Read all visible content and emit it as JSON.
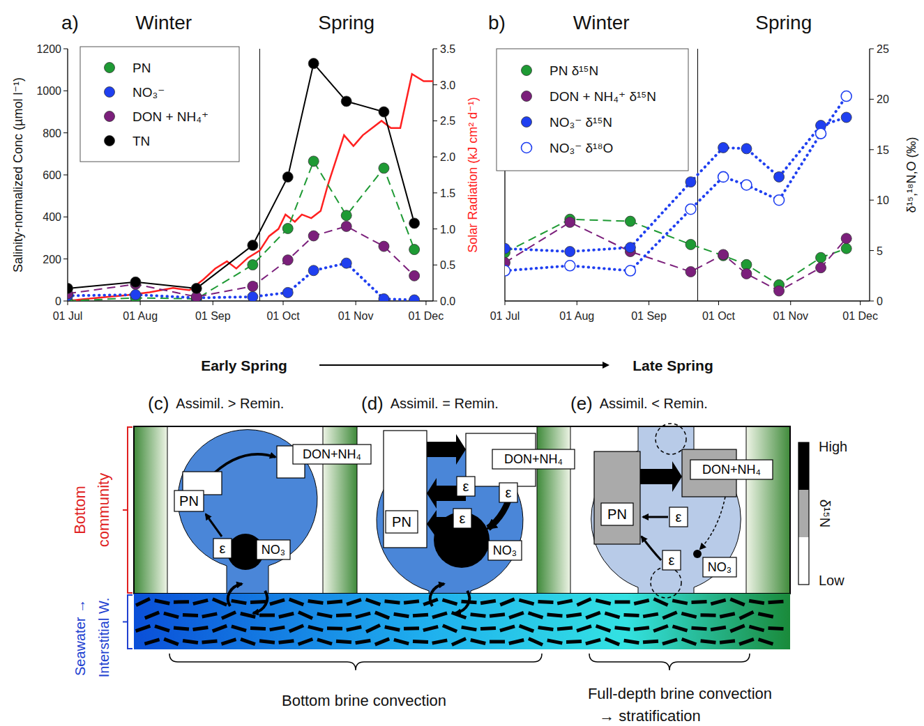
{
  "chart_data": [
    {
      "type": "line",
      "panel": "a)",
      "annotations": [
        "Winter",
        "Spring"
      ],
      "season_divider": 82,
      "y_label": "Salinity-normalized Conc (µmol l⁻¹)",
      "y2_label": "Solar Radiation (kJ cm² d⁻¹)",
      "xlim": [
        0,
        156
      ],
      "xticks": [
        {
          "value": 0,
          "label": "01 Jul"
        },
        {
          "value": 31,
          "label": "01 Aug"
        },
        {
          "value": 62,
          "label": "01 Sep"
        },
        {
          "value": 92,
          "label": "01 Oct"
        },
        {
          "value": 123,
          "label": "01 Nov"
        },
        {
          "value": 153,
          "label": "01 Dec"
        }
      ],
      "ylim": [
        0,
        1200
      ],
      "yticks": [
        0,
        200,
        400,
        600,
        800,
        1000,
        1200
      ],
      "y2lim": [
        0,
        3.5
      ],
      "y2ticks": [
        {
          "value": 0,
          "label": "0.0"
        },
        0.5,
        {
          "value": 1,
          "label": "1.0"
        },
        1.5,
        {
          "value": 2,
          "label": "2.0"
        },
        2.5,
        {
          "value": 3,
          "label": "3.0"
        },
        3.5
      ],
      "grid": false,
      "legend": "top-left",
      "series": [
        {
          "name": "PN",
          "color": "#1e9a34",
          "marker": "circle",
          "line_style": "dashed",
          "x": [
            0,
            29,
            55,
            79,
            94,
            105,
            119,
            135,
            148
          ],
          "values": [
            0,
            15,
            10,
            172,
            345,
            665,
            407,
            632,
            245
          ]
        },
        {
          "name": "NO₃⁻",
          "color": "#1f3ff0",
          "marker": "circle",
          "line_style": "dotted",
          "x": [
            0,
            29,
            55,
            79,
            94,
            105,
            119,
            135,
            148
          ],
          "values": [
            25,
            30,
            15,
            20,
            40,
            145,
            180,
            10,
            5
          ]
        },
        {
          "name": "DON + NH₄⁺",
          "color": "#7b1f7b",
          "marker": "circle",
          "line_style": "dashed",
          "x": [
            0,
            29,
            55,
            79,
            94,
            105,
            119,
            135,
            148
          ],
          "values": [
            35,
            80,
            20,
            70,
            195,
            310,
            355,
            260,
            120
          ]
        },
        {
          "name": "TN",
          "color": "#000000",
          "marker": "circle",
          "line_style": "solid",
          "x": [
            0,
            29,
            55,
            79,
            94,
            105,
            119,
            135,
            148
          ],
          "values": [
            60,
            90,
            60,
            265,
            590,
            1130,
            950,
            900,
            370
          ]
        },
        {
          "color": "#ff2020",
          "line_style": "solid",
          "axis": "y2",
          "x": [
            0,
            5,
            15,
            25,
            35,
            45,
            52,
            58,
            63,
            68,
            72,
            77,
            82,
            86,
            90,
            93,
            97,
            100,
            104,
            108,
            111,
            115,
            118,
            122,
            126,
            130,
            134,
            138,
            142,
            147,
            152,
            156
          ],
          "values": [
            0,
            0.02,
            0.05,
            0.08,
            0.12,
            0.18,
            0.15,
            0.3,
            0.45,
            0.55,
            0.45,
            0.6,
            0.7,
            0.9,
            1.0,
            1.2,
            1.1,
            1.2,
            1.15,
            1.25,
            1.6,
            2.0,
            2.3,
            2.15,
            2.3,
            2.4,
            2.5,
            2.4,
            2.4,
            3.15,
            3.05,
            3.05
          ]
        }
      ]
    },
    {
      "type": "line",
      "panel": "b)",
      "annotations": [
        "Winter",
        "Spring"
      ],
      "season_divider": 83,
      "y2_label": "δ¹⁵,¹⁸N,O (‰)",
      "xlim": [
        0,
        157
      ],
      "xticks": [
        {
          "value": 0,
          "label": "01 Jul"
        },
        {
          "value": 31,
          "label": "01 Aug"
        },
        {
          "value": 62,
          "label": "01 Sep"
        },
        {
          "value": 92,
          "label": "01 Oct"
        },
        {
          "value": 123,
          "label": "01 Nov"
        },
        {
          "value": 153,
          "label": "01 Dec"
        }
      ],
      "y2lim": [
        0,
        25
      ],
      "y2ticks": [
        0,
        5,
        10,
        15,
        20,
        25
      ],
      "grid": false,
      "legend": "top-left",
      "series": [
        {
          "name": "PN δ¹⁵N",
          "color": "#1e9a34",
          "marker": "circle",
          "line_style": "dashed",
          "axis": "y2",
          "x": [
            0,
            28,
            54,
            80,
            94,
            104,
            118,
            136,
            147
          ],
          "values": [
            4.8,
            8.1,
            7.9,
            5.6,
            4.5,
            3.6,
            1.6,
            4.3,
            5.2
          ]
        },
        {
          "name": "DON + NH₄⁺ δ¹⁵N",
          "color": "#7b1f7b",
          "marker": "circle",
          "line_style": "dashed",
          "axis": "y2",
          "x": [
            0,
            28,
            54,
            80,
            94,
            104,
            118,
            136,
            147
          ],
          "values": [
            3.8,
            7.8,
            4.9,
            2.9,
            4.6,
            2.7,
            1.0,
            3.3,
            6.2
          ]
        },
        {
          "name": "NO₃⁻ δ¹⁵N",
          "color": "#1f3ff0",
          "marker": "circle",
          "line_style": "dotted",
          "axis": "y2",
          "x": [
            0,
            28,
            54,
            80,
            94,
            104,
            118,
            136,
            147
          ],
          "values": [
            5.2,
            4.9,
            5.3,
            11.8,
            15.2,
            15.1,
            12.3,
            17.4,
            18.2
          ]
        },
        {
          "name": "NO₃⁻ δ¹⁸O",
          "color": "#1f3ff0",
          "marker": "open-circle",
          "line_style": "dotted",
          "axis": "y2",
          "x": [
            0,
            28,
            54,
            80,
            94,
            104,
            118,
            136,
            147
          ],
          "values": [
            3.0,
            3.5,
            3.0,
            9.1,
            12.3,
            11.5,
            10.0,
            16.6,
            20.3
          ]
        }
      ]
    }
  ],
  "diagram": {
    "timeline": {
      "start": "Early Spring",
      "end": "Late Spring"
    },
    "panels": [
      {
        "letter": "(c)",
        "title": "Assimil. > Remin.",
        "pn": "PN",
        "don": "DON+NH₄",
        "no3": "NO₃",
        "epsilons": [
          "ε"
        ]
      },
      {
        "letter": "(d)",
        "title": "Assimil. = Remin.",
        "pn": "PN",
        "don": "DON+NH₄",
        "no3": "NO₃",
        "epsilons": [
          "ε",
          "ε",
          "ε"
        ]
      },
      {
        "letter": "(e)",
        "title": "Assimil. < Remin.",
        "pn": "PN",
        "don": "DON+NH₄",
        "no3": "NO₃",
        "epsilons": [
          "ε",
          "ε"
        ]
      }
    ],
    "side_labels": [
      {
        "lines": [
          "Bottom",
          "community"
        ],
        "color": "#e02020"
      },
      {
        "lines": [
          "Seawater →",
          "Interstitial W."
        ],
        "color": "#2040d0"
      }
    ],
    "scale": {
      "high": "High",
      "title": "δ¹⁵N",
      "low": "Low"
    },
    "brackets": [
      {
        "lines": [
          "Bottom brine convection"
        ]
      },
      {
        "lines": [
          "Full-depth brine convection",
          "→ stratification"
        ]
      }
    ]
  }
}
